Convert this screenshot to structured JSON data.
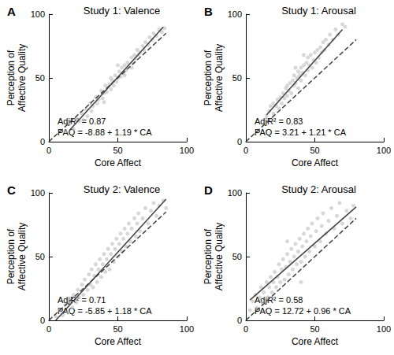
{
  "chart_data": [
    {
      "type": "scatter",
      "panel": "A",
      "title": "Study 1: Valence",
      "x_label": "Core Affect",
      "y_label": "Perception of\nAffective Quality",
      "xlim": [
        0,
        100
      ],
      "xticks": [
        0,
        50,
        100
      ],
      "ylim": [
        0,
        100
      ],
      "yticks": [
        0,
        50,
        100
      ],
      "grid": false,
      "annotations": [
        "AdjR² = 0.87",
        "PAQ = -8.88 + 1.19 * CA"
      ],
      "series": [
        {
          "type": "scatter",
          "marker": "circle",
          "color": "#bdbdbd",
          "values": [
            [
              12,
              8
            ],
            [
              15,
              14
            ],
            [
              18,
              10
            ],
            [
              20,
              18
            ],
            [
              22,
              16
            ],
            [
              24,
              22
            ],
            [
              25,
              17
            ],
            [
              27,
              25
            ],
            [
              28,
              20
            ],
            [
              30,
              30
            ],
            [
              31,
              24
            ],
            [
              32,
              28
            ],
            [
              34,
              35
            ],
            [
              35,
              30
            ],
            [
              36,
              33
            ],
            [
              38,
              40
            ],
            [
              39,
              34
            ],
            [
              40,
              38
            ],
            [
              41,
              44
            ],
            [
              42,
              39
            ],
            [
              44,
              45
            ],
            [
              45,
              41
            ],
            [
              46,
              48
            ],
            [
              47,
              44
            ],
            [
              48,
              52
            ],
            [
              49,
              47
            ],
            [
              50,
              50
            ],
            [
              51,
              55
            ],
            [
              52,
              51
            ],
            [
              53,
              58
            ],
            [
              54,
              54
            ],
            [
              55,
              60
            ],
            [
              56,
              56
            ],
            [
              57,
              62
            ],
            [
              58,
              59
            ],
            [
              60,
              66
            ],
            [
              61,
              62
            ],
            [
              62,
              68
            ],
            [
              63,
              65
            ],
            [
              64,
              72
            ],
            [
              65,
              68
            ],
            [
              66,
              70
            ],
            [
              68,
              75
            ],
            [
              69,
              72
            ],
            [
              70,
              78
            ],
            [
              72,
              76
            ],
            [
              73,
              82
            ],
            [
              75,
              80
            ],
            [
              76,
              85
            ],
            [
              78,
              83
            ],
            [
              80,
              88
            ],
            [
              82,
              86
            ],
            [
              84,
              89
            ],
            [
              45,
              50
            ],
            [
              50,
              60
            ],
            [
              40,
              31
            ],
            [
              55,
              52
            ],
            [
              60,
              58
            ]
          ]
        },
        {
          "type": "line",
          "line_style": "solid",
          "color": "#404040",
          "values": [
            [
              15,
              9
            ],
            [
              83,
              90
            ]
          ]
        },
        {
          "type": "line",
          "line_style": "dashed",
          "color": "#404040",
          "values": [
            [
              0,
              0
            ],
            [
              85,
              85
            ]
          ]
        }
      ]
    },
    {
      "type": "scatter",
      "panel": "B",
      "title": "Study 1: Arousal",
      "x_label": "Core Affect",
      "y_label": "Perception of\nAffective Quality",
      "xlim": [
        0,
        100
      ],
      "xticks": [
        0,
        50,
        100
      ],
      "ylim": [
        0,
        100
      ],
      "yticks": [
        0,
        50,
        100
      ],
      "grid": false,
      "annotations": [
        "AdjR² = 0.83",
        "PAQ = 3.21 + 1.21 * CA"
      ],
      "series": [
        {
          "type": "scatter",
          "marker": "circle",
          "color": "#bdbdbd",
          "values": [
            [
              15,
              20
            ],
            [
              17,
              24
            ],
            [
              18,
              28
            ],
            [
              20,
              22
            ],
            [
              20,
              30
            ],
            [
              22,
              28
            ],
            [
              23,
              33
            ],
            [
              24,
              26
            ],
            [
              25,
              35
            ],
            [
              26,
              30
            ],
            [
              27,
              38
            ],
            [
              28,
              34
            ],
            [
              29,
              42
            ],
            [
              30,
              36
            ],
            [
              30,
              44
            ],
            [
              31,
              40
            ],
            [
              32,
              46
            ],
            [
              33,
              38
            ],
            [
              34,
              48
            ],
            [
              35,
              44
            ],
            [
              35,
              52
            ],
            [
              36,
              46
            ],
            [
              37,
              50
            ],
            [
              38,
              55
            ],
            [
              38,
              42
            ],
            [
              39,
              52
            ],
            [
              40,
              58
            ],
            [
              40,
              48
            ],
            [
              41,
              54
            ],
            [
              42,
              60
            ],
            [
              43,
              52
            ],
            [
              44,
              62
            ],
            [
              45,
              56
            ],
            [
              45,
              66
            ],
            [
              46,
              60
            ],
            [
              47,
              68
            ],
            [
              48,
              58
            ],
            [
              49,
              64
            ],
            [
              50,
              70
            ],
            [
              51,
              62
            ],
            [
              52,
              72
            ],
            [
              53,
              66
            ],
            [
              54,
              74
            ],
            [
              55,
              70
            ],
            [
              56,
              78
            ],
            [
              57,
              72
            ],
            [
              58,
              80
            ],
            [
              60,
              76
            ],
            [
              61,
              84
            ],
            [
              63,
              80
            ],
            [
              65,
              88
            ],
            [
              67,
              84
            ],
            [
              70,
              92
            ],
            [
              72,
              90
            ],
            [
              42,
              68
            ],
            [
              36,
              58
            ]
          ]
        },
        {
          "type": "line",
          "line_style": "solid",
          "color": "#404040",
          "values": [
            [
              15,
              21
            ],
            [
              70,
              88
            ]
          ]
        },
        {
          "type": "line",
          "line_style": "dashed",
          "color": "#404040",
          "values": [
            [
              0,
              0
            ],
            [
              80,
              80
            ]
          ]
        }
      ]
    },
    {
      "type": "scatter",
      "panel": "C",
      "title": "Study 2: Valence",
      "x_label": "Core Affect",
      "y_label": "Perception of\nAffective Quality",
      "xlim": [
        0,
        100
      ],
      "xticks": [
        0,
        50,
        100
      ],
      "ylim": [
        0,
        100
      ],
      "yticks": [
        0,
        50,
        100
      ],
      "grid": false,
      "annotations": [
        "AdjR² = 0.71",
        "PAQ = -5.85 + 1.18 * CA"
      ],
      "series": [
        {
          "type": "scatter",
          "marker": "circle",
          "color": "#bdbdbd",
          "values": [
            [
              5,
              3
            ],
            [
              8,
              8
            ],
            [
              10,
              4
            ],
            [
              12,
              12
            ],
            [
              14,
              6
            ],
            [
              15,
              15
            ],
            [
              17,
              10
            ],
            [
              18,
              20
            ],
            [
              20,
              14
            ],
            [
              21,
              24
            ],
            [
              22,
              18
            ],
            [
              24,
              28
            ],
            [
              25,
              20
            ],
            [
              26,
              32
            ],
            [
              28,
              24
            ],
            [
              29,
              36
            ],
            [
              30,
              28
            ],
            [
              31,
              40
            ],
            [
              32,
              26
            ],
            [
              33,
              35
            ],
            [
              34,
              44
            ],
            [
              35,
              30
            ],
            [
              36,
              40
            ],
            [
              37,
              48
            ],
            [
              38,
              34
            ],
            [
              39,
              44
            ],
            [
              40,
              52
            ],
            [
              41,
              38
            ],
            [
              42,
              48
            ],
            [
              43,
              56
            ],
            [
              44,
              40
            ],
            [
              45,
              52
            ],
            [
              46,
              60
            ],
            [
              47,
              46
            ],
            [
              48,
              56
            ],
            [
              49,
              64
            ],
            [
              50,
              50
            ],
            [
              51,
              60
            ],
            [
              52,
              68
            ],
            [
              53,
              54
            ],
            [
              54,
              64
            ],
            [
              55,
              72
            ],
            [
              56,
              58
            ],
            [
              57,
              68
            ],
            [
              58,
              76
            ],
            [
              59,
              62
            ],
            [
              60,
              72
            ],
            [
              62,
              80
            ],
            [
              63,
              66
            ],
            [
              64,
              76
            ],
            [
              65,
              84
            ],
            [
              66,
              70
            ],
            [
              68,
              80
            ],
            [
              70,
              88
            ],
            [
              72,
              76
            ],
            [
              74,
              86
            ],
            [
              76,
              92
            ],
            [
              78,
              82
            ],
            [
              80,
              90
            ],
            [
              83,
              94
            ],
            [
              85,
              88
            ]
          ]
        },
        {
          "type": "line",
          "line_style": "solid",
          "color": "#404040",
          "values": [
            [
              5,
              0
            ],
            [
              85,
              95
            ]
          ]
        },
        {
          "type": "line",
          "line_style": "dashed",
          "color": "#404040",
          "values": [
            [
              0,
              0
            ],
            [
              85,
              85
            ]
          ]
        }
      ]
    },
    {
      "type": "scatter",
      "panel": "D",
      "title": "Study 2: Arousal",
      "x_label": "Core Affect",
      "y_label": "Perception of\nAffective Quality",
      "xlim": [
        0,
        100
      ],
      "xticks": [
        0,
        50,
        100
      ],
      "ylim": [
        0,
        100
      ],
      "yticks": [
        0,
        50,
        100
      ],
      "grid": false,
      "annotations": [
        "AdjR² = 0.58",
        "PAQ = 12.72 + 0.96 * CA"
      ],
      "series": [
        {
          "type": "scatter",
          "marker": "circle",
          "color": "#bdbdbd",
          "values": [
            [
              3,
              8
            ],
            [
              5,
              15
            ],
            [
              7,
              20
            ],
            [
              8,
              10
            ],
            [
              10,
              18
            ],
            [
              11,
              26
            ],
            [
              12,
              14
            ],
            [
              13,
              22
            ],
            [
              15,
              30
            ],
            [
              16,
              18
            ],
            [
              17,
              26
            ],
            [
              18,
              34
            ],
            [
              19,
              22
            ],
            [
              20,
              30
            ],
            [
              21,
              38
            ],
            [
              22,
              26
            ],
            [
              23,
              34
            ],
            [
              24,
              44
            ],
            [
              25,
              30
            ],
            [
              26,
              40
            ],
            [
              27,
              48
            ],
            [
              28,
              32
            ],
            [
              29,
              42
            ],
            [
              30,
              52
            ],
            [
              31,
              36
            ],
            [
              32,
              46
            ],
            [
              33,
              56
            ],
            [
              34,
              40
            ],
            [
              35,
              50
            ],
            [
              36,
              60
            ],
            [
              37,
              44
            ],
            [
              38,
              54
            ],
            [
              39,
              64
            ],
            [
              40,
              46
            ],
            [
              41,
              58
            ],
            [
              42,
              68
            ],
            [
              43,
              50
            ],
            [
              44,
              62
            ],
            [
              45,
              72
            ],
            [
              46,
              54
            ],
            [
              47,
              66
            ],
            [
              48,
              76
            ],
            [
              50,
              58
            ],
            [
              51,
              70
            ],
            [
              52,
              80
            ],
            [
              54,
              62
            ],
            [
              55,
              74
            ],
            [
              56,
              84
            ],
            [
              58,
              68
            ],
            [
              60,
              78
            ],
            [
              62,
              88
            ],
            [
              64,
              72
            ],
            [
              66,
              82
            ],
            [
              68,
              92
            ],
            [
              70,
              76
            ],
            [
              73,
              86
            ],
            [
              76,
              80
            ],
            [
              78,
              90
            ],
            [
              40,
              30
            ],
            [
              30,
              62
            ]
          ]
        },
        {
          "type": "line",
          "line_style": "solid",
          "color": "#404040",
          "values": [
            [
              3,
              16
            ],
            [
              80,
              89
            ]
          ]
        },
        {
          "type": "line",
          "line_style": "dashed",
          "color": "#404040",
          "values": [
            [
              0,
              0
            ],
            [
              80,
              80
            ]
          ]
        }
      ]
    }
  ]
}
